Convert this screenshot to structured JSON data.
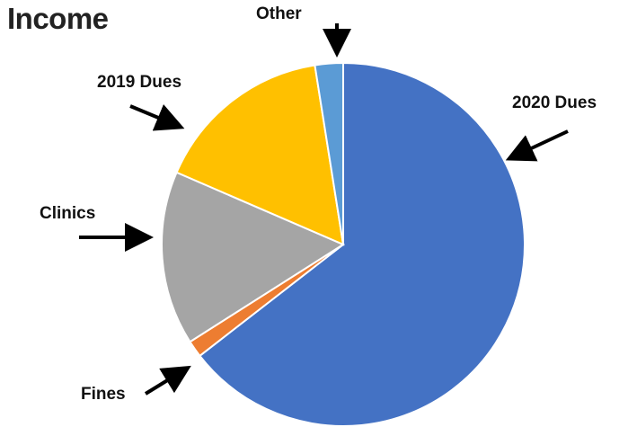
{
  "chart_data": {
    "type": "pie",
    "title": "Income",
    "start_angle_deg": 0,
    "direction": "clockwise",
    "slices": [
      {
        "label": "2020 Dues",
        "value": 64.5,
        "color": "#4472C4"
      },
      {
        "label": "Fines",
        "value": 1.5,
        "color": "#ED7D31"
      },
      {
        "label": "Clinics",
        "value": 15.5,
        "color": "#A5A5A5"
      },
      {
        "label": "2019 Dues",
        "value": 16.0,
        "color": "#FFC000"
      },
      {
        "label": "Other",
        "value": 2.5,
        "color": "#5B9BD5"
      }
    ],
    "legend": "none"
  }
}
